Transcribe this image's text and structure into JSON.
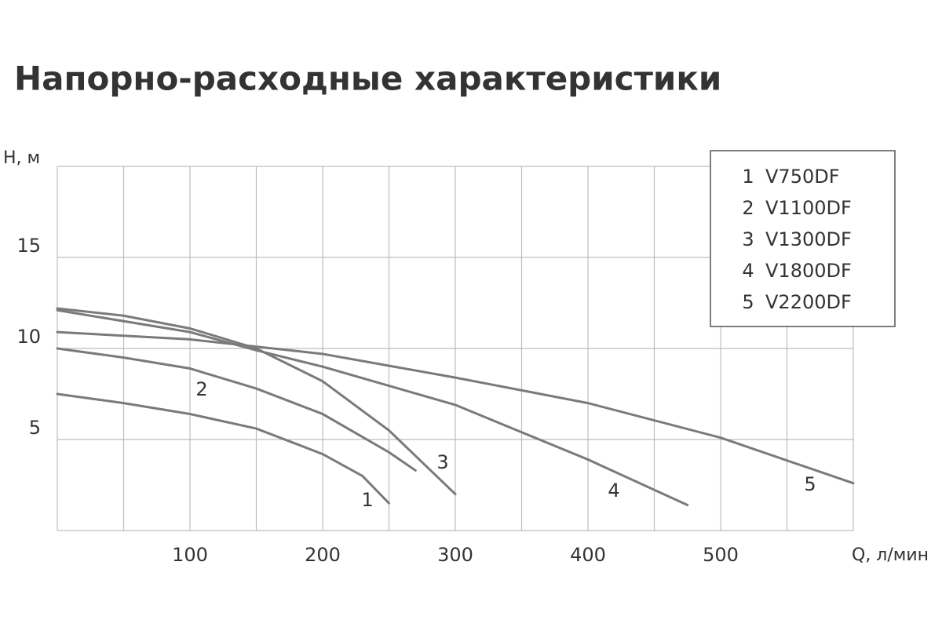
{
  "chart_data": {
    "type": "line",
    "title": "Напорно-расходные характеристики",
    "x_label": "Q, л/мин",
    "y_label": "H, м",
    "xlim": [
      0,
      600
    ],
    "ylim": [
      0,
      20
    ],
    "xticks": [
      100,
      200,
      300,
      400,
      500
    ],
    "yticks": [
      5,
      10,
      15
    ],
    "xgrid": [
      50,
      150,
      250,
      350,
      450,
      550
    ],
    "ygrid": [
      20
    ],
    "grid": true,
    "legend": "upper right",
    "color": "#7a7a7a",
    "series": [
      {
        "label": "1",
        "name": "V750DF",
        "x": [
          0,
          50,
          100,
          150,
          200,
          230,
          250
        ],
        "values": [
          7.5,
          7.0,
          6.4,
          5.6,
          4.2,
          3.0,
          1.5
        ]
      },
      {
        "label": "2",
        "name": "V1100DF",
        "x": [
          0,
          50,
          100,
          150,
          200,
          250,
          270
        ],
        "values": [
          10,
          9.5,
          8.9,
          7.8,
          6.4,
          4.3,
          3.3
        ]
      },
      {
        "label": "3",
        "name": "V1300DF",
        "x": [
          0,
          50,
          100,
          150,
          200,
          250,
          300
        ],
        "values": [
          12.2,
          11.8,
          11.1,
          10.0,
          8.2,
          5.5,
          2.0
        ]
      },
      {
        "label": "4",
        "name": "V1800DF",
        "x": [
          0,
          100,
          150,
          200,
          300,
          400,
          475
        ],
        "values": [
          12.1,
          10.9,
          9.9,
          9.0,
          6.9,
          3.9,
          1.4
        ]
      },
      {
        "label": "5",
        "name": "V2200DF",
        "x": [
          0,
          100,
          200,
          300,
          400,
          500,
          600
        ],
        "values": [
          10.9,
          10.5,
          9.7,
          8.4,
          7.0,
          5.1,
          2.6
        ]
      }
    ]
  }
}
